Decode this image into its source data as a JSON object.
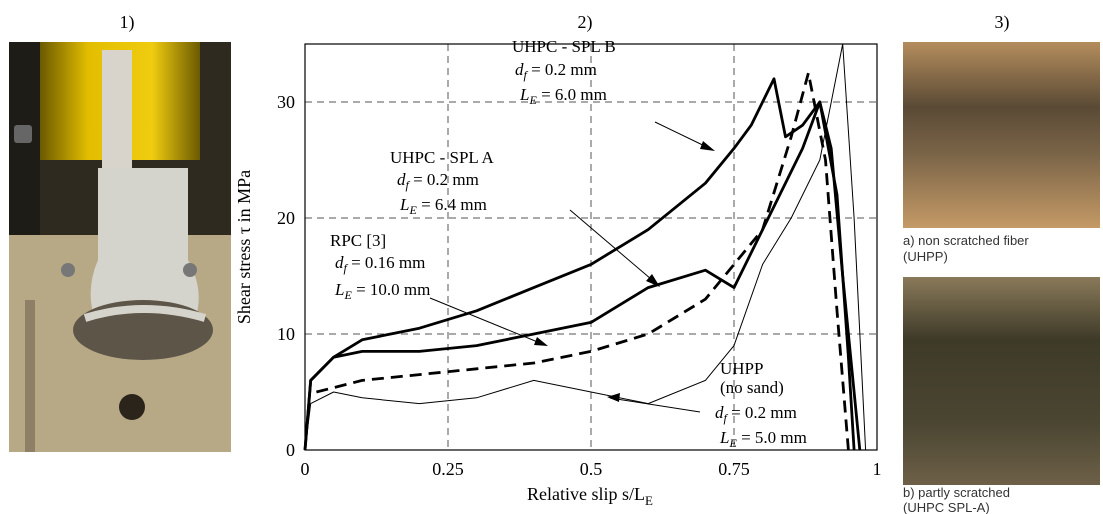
{
  "panel_labels": [
    "1)",
    "2)",
    "3)"
  ],
  "photo_captions": [
    [
      "a) non scratched fiber",
      "(UHPP)"
    ],
    [
      "b) partly scratched",
      "(UHPC SPL-A)"
    ]
  ],
  "chart_data": {
    "type": "line",
    "x_label": {
      "text": "Relative slip s/L",
      "sub": "E"
    },
    "y_label": "Shear stress τ in MPa",
    "xlim": [
      0,
      1
    ],
    "ylim": [
      0,
      35
    ],
    "xticks": [
      0,
      0.25,
      0.5,
      0.75,
      1
    ],
    "yticks": [
      0,
      10,
      20,
      30
    ],
    "grid": true,
    "series": [
      {
        "name": "UHPC - SPL B",
        "color": "#000000",
        "width": 2.8,
        "dash": false,
        "x": [
          0,
          0.01,
          0.05,
          0.1,
          0.2,
          0.3,
          0.4,
          0.5,
          0.6,
          0.7,
          0.75,
          0.78,
          0.82,
          0.84,
          0.87,
          0.9,
          0.92,
          0.94,
          0.96,
          0.97
        ],
        "values": [
          0,
          6,
          8,
          9.5,
          10.5,
          12,
          14,
          16,
          19,
          23,
          26,
          28,
          32,
          27,
          28,
          30,
          26,
          15,
          5,
          0
        ]
      },
      {
        "name": "UHPC - SPL A",
        "color": "#000000",
        "width": 2.8,
        "dash": false,
        "x": [
          0,
          0.01,
          0.05,
          0.1,
          0.2,
          0.3,
          0.4,
          0.5,
          0.6,
          0.7,
          0.75,
          0.8,
          0.87,
          0.9,
          0.93,
          0.95,
          0.96
        ],
        "values": [
          0,
          6,
          8,
          8.5,
          8.5,
          9,
          10,
          11,
          14,
          15.5,
          14,
          19,
          26,
          30,
          22,
          8,
          0
        ]
      },
      {
        "name": "RPC [3]",
        "color": "#000000",
        "width": 2.8,
        "dash": true,
        "x": [
          0.02,
          0.1,
          0.2,
          0.3,
          0.4,
          0.5,
          0.6,
          0.7,
          0.8,
          0.85,
          0.88,
          0.91,
          0.93,
          0.95
        ],
        "values": [
          5,
          6,
          6.5,
          7,
          7.5,
          8.5,
          10,
          13,
          19,
          27,
          32.5,
          25,
          12,
          0
        ]
      },
      {
        "name": "UHPP",
        "color": "#000000",
        "width": 1,
        "dash": false,
        "x": [
          0,
          0.01,
          0.05,
          0.1,
          0.2,
          0.3,
          0.4,
          0.5,
          0.6,
          0.7,
          0.75,
          0.8,
          0.85,
          0.9,
          0.94,
          0.96,
          0.98
        ],
        "values": [
          0,
          4,
          5,
          4.5,
          4,
          4.5,
          6,
          5,
          4,
          6,
          9,
          16,
          20,
          25,
          35,
          20,
          0
        ]
      }
    ],
    "annotations": [
      {
        "title": [
          "UHPC - SPL B"
        ],
        "d": {
          "sym": "d",
          "sub": "f",
          "text": " = 0.2 mm"
        },
        "l": {
          "sym": "L",
          "sub": "E",
          "text": " = 6.0 mm"
        }
      },
      {
        "title": [
          "UHPC - SPL A"
        ],
        "d": {
          "sym": "d",
          "sub": "f",
          "text": " = 0.2 mm"
        },
        "l": {
          "sym": "L",
          "sub": "E",
          "text": " = 6.4 mm"
        }
      },
      {
        "title": [
          "RPC [3]"
        ],
        "d": {
          "sym": "d",
          "sub": "f",
          "text": " = 0.16 mm"
        },
        "l": {
          "sym": "L",
          "sub": "E",
          "text": " = 10.0 mm"
        }
      },
      {
        "title": [
          "UHPP",
          "(no sand)"
        ],
        "d": {
          "sym": "d",
          "sub": "f",
          "text": " = 0.2 mm"
        },
        "l": {
          "sym": "L",
          "sub": "E",
          "text": " = 5.0 mm"
        }
      }
    ]
  }
}
